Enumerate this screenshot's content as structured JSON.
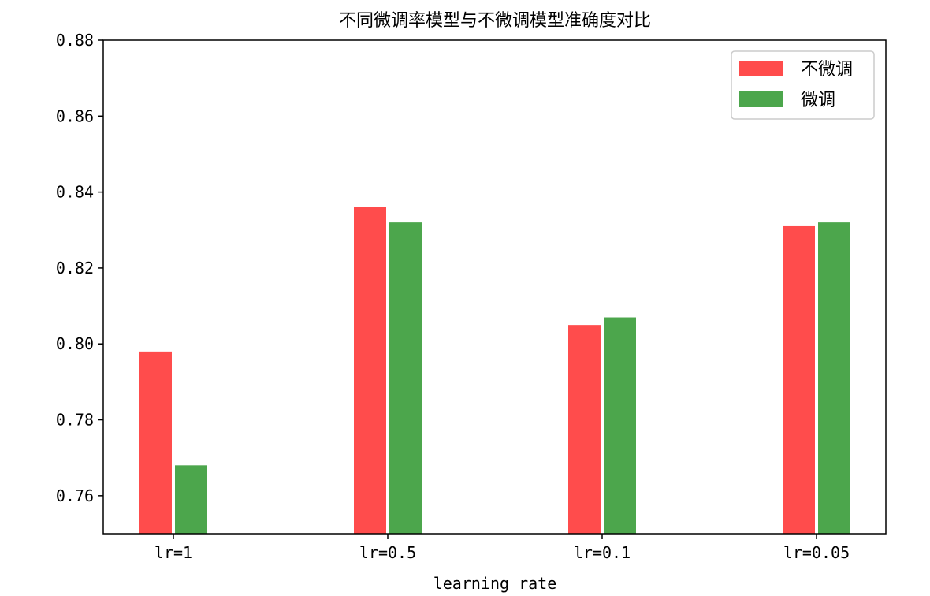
{
  "chart_data": {
    "type": "bar",
    "title": "不同微调率模型与不微调模型准确度对比",
    "xlabel": "learning rate",
    "ylabel": "",
    "categories": [
      "lr=1",
      "lr=0.5",
      "lr=0.1",
      "lr=0.05"
    ],
    "series": [
      {
        "name": "不微调",
        "color": "#ff4c4c",
        "values": [
          0.798,
          0.836,
          0.805,
          0.831
        ]
      },
      {
        "name": "微调",
        "color": "#4ca64c",
        "values": [
          0.768,
          0.832,
          0.807,
          0.832
        ]
      }
    ],
    "ylim": [
      0.75,
      0.88
    ],
    "yticks": [
      "0.76",
      "0.78",
      "0.80",
      "0.82",
      "0.84",
      "0.86",
      "0.88"
    ],
    "grid": false,
    "legend_position": "top-right"
  }
}
